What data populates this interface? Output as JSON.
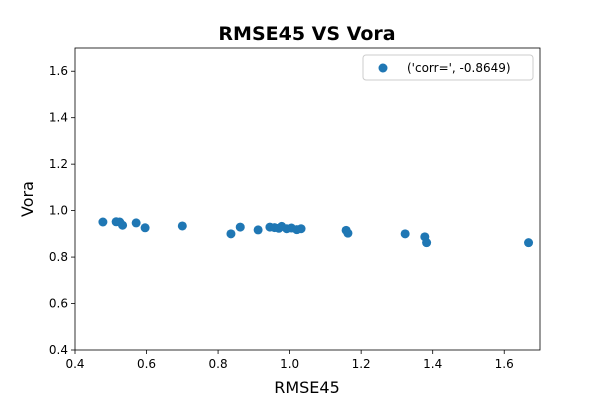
{
  "chart_data": {
    "type": "scatter",
    "title": "RMSE45 VS Vora",
    "xlabel": "RMSE45",
    "ylabel": "Vora",
    "xlim": [
      0.4,
      1.7
    ],
    "ylim": [
      0.4,
      1.7
    ],
    "xticks": [
      "0.4",
      "0.6",
      "0.8",
      "1.0",
      "1.2",
      "1.4",
      "1.6"
    ],
    "yticks": [
      "0.4",
      "0.6",
      "0.8",
      "1.0",
      "1.2",
      "1.4",
      "1.6"
    ],
    "grid": false,
    "legend_position": "top-right",
    "series": [
      {
        "name": "('corr=', -0.8649)",
        "color": "#1f77b4",
        "points": [
          [
            0.478,
            0.951
          ],
          [
            0.515,
            0.952
          ],
          [
            0.525,
            0.951
          ],
          [
            0.533,
            0.937
          ],
          [
            0.571,
            0.947
          ],
          [
            0.596,
            0.926
          ],
          [
            0.7,
            0.934
          ],
          [
            0.836,
            0.9
          ],
          [
            0.862,
            0.929
          ],
          [
            0.912,
            0.917
          ],
          [
            0.945,
            0.929
          ],
          [
            0.958,
            0.927
          ],
          [
            0.97,
            0.924
          ],
          [
            0.978,
            0.932
          ],
          [
            0.992,
            0.922
          ],
          [
            1.005,
            0.925
          ],
          [
            1.02,
            0.918
          ],
          [
            1.032,
            0.922
          ],
          [
            1.158,
            0.915
          ],
          [
            1.163,
            0.903
          ],
          [
            1.323,
            0.9
          ],
          [
            1.378,
            0.887
          ],
          [
            1.383,
            0.862
          ],
          [
            1.668,
            0.862
          ]
        ]
      }
    ]
  }
}
